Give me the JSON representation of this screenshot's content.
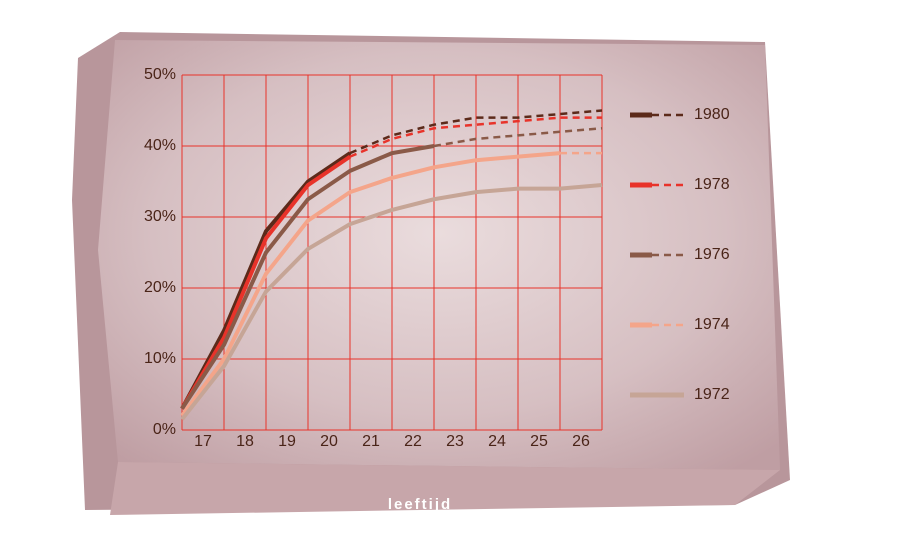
{
  "chart_data": {
    "type": "line",
    "x_label": "leeftijd",
    "x": [
      16.5,
      17.5,
      18.5,
      19.5,
      20.5,
      21.5,
      22.5,
      23.5,
      24.5,
      25.5,
      26.5
    ],
    "xlim": [
      16.5,
      26.5
    ],
    "xticks": [
      17,
      18,
      19,
      20,
      21,
      22,
      23,
      24,
      25,
      26
    ],
    "xgrid": [
      16.5,
      17.5,
      18.5,
      19.5,
      20.5,
      21.5,
      22.5,
      23.5,
      24.5,
      25.5,
      26.5
    ],
    "ylim": [
      0,
      50
    ],
    "yticks": [
      {
        "value": 0,
        "label": "0%"
      },
      {
        "value": 10,
        "label": "10%"
      },
      {
        "value": 20,
        "label": "20%"
      },
      {
        "value": 30,
        "label": "30%"
      },
      {
        "value": 40,
        "label": "40%"
      },
      {
        "value": 50,
        "label": "50%"
      }
    ],
    "grid": true,
    "grid_color": "#e8332a",
    "series": [
      {
        "name": "1980",
        "color": "#5c2a1a",
        "dash_from": 4,
        "values": [
          3,
          14,
          28,
          35,
          39,
          41.5,
          43,
          44,
          44,
          44.5,
          45
        ]
      },
      {
        "name": "1978",
        "color": "#e8332a",
        "dash_from": 4,
        "values": [
          3,
          13,
          27,
          34.5,
          38.5,
          41,
          42.5,
          43,
          43.5,
          44,
          44
        ]
      },
      {
        "name": "1976",
        "color": "#8a5a48",
        "dash_from": 6,
        "values": [
          3,
          12,
          25,
          32.5,
          36.5,
          39,
          40,
          41,
          41.5,
          42,
          42.5
        ]
      },
      {
        "name": "1974",
        "color": "#f4a58a",
        "dash_from": 9,
        "values": [
          2,
          10,
          22,
          29.5,
          33.5,
          35.5,
          37,
          38,
          38.5,
          39,
          39
        ]
      },
      {
        "name": "1972",
        "color": "#c6a596",
        "values": [
          1.5,
          9,
          19.5,
          25.5,
          29,
          31,
          32.5,
          33.5,
          34,
          34,
          34.5
        ]
      }
    ]
  }
}
